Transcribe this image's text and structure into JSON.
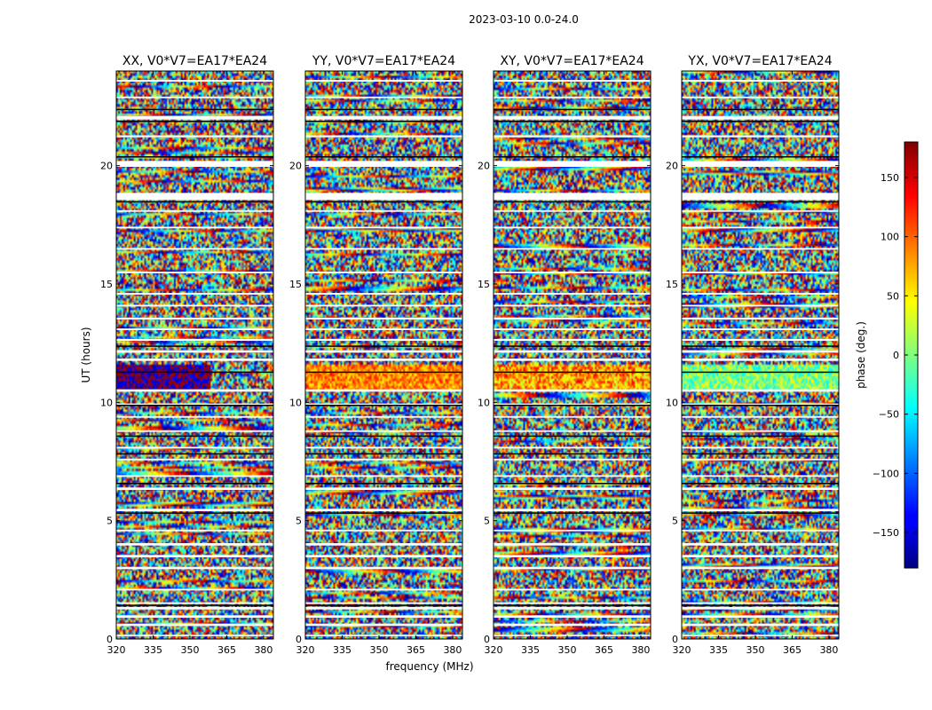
{
  "figure": {
    "suptitle": "2023-03-10 0.0-24.0",
    "xlabel": "frequency (MHz)",
    "ylabel": "UT (hours)"
  },
  "chart_data": {
    "type": "heatmap",
    "x_range": [
      320,
      384
    ],
    "y_range": [
      0,
      24
    ],
    "xticks": [
      320,
      335,
      350,
      365,
      380
    ],
    "yticks": [
      0,
      5,
      10,
      15,
      20
    ],
    "panels": [
      {
        "title": "XX, V0*V7=EA17*EA24"
      },
      {
        "title": "YY, V0*V7=EA17*EA24"
      },
      {
        "title": "XY, V0*V7=EA17*EA24"
      },
      {
        "title": "YX, V0*V7=EA17*EA24"
      }
    ],
    "colorbar": {
      "label": "phase (deg.)",
      "range": [
        -180,
        180
      ],
      "ticks": [
        -150,
        -100,
        -50,
        0,
        50,
        100,
        150
      ],
      "colormap": "jet"
    },
    "blank_bands_hours": [
      [
        0.12,
        0.18
      ],
      [
        0.55,
        0.65
      ],
      [
        0.9,
        1.0
      ],
      [
        1.25,
        1.35
      ],
      [
        1.48,
        1.55
      ],
      [
        2.05,
        2.12
      ],
      [
        2.95,
        3.05
      ],
      [
        3.45,
        3.55
      ],
      [
        3.95,
        4.05
      ],
      [
        4.55,
        4.62
      ],
      [
        5.4,
        5.5
      ],
      [
        6.3,
        6.4
      ],
      [
        6.85,
        6.92
      ],
      [
        7.55,
        7.62
      ],
      [
        8.05,
        8.12
      ],
      [
        8.75,
        8.82
      ],
      [
        9.35,
        9.42
      ],
      [
        9.85,
        9.95
      ],
      [
        10.45,
        10.55
      ],
      [
        11.75,
        11.85
      ],
      [
        12.1,
        12.2
      ],
      [
        12.6,
        12.68
      ],
      [
        13.05,
        13.12
      ],
      [
        13.5,
        13.58
      ],
      [
        14.05,
        14.12
      ],
      [
        14.55,
        14.62
      ],
      [
        15.45,
        15.52
      ],
      [
        16.45,
        16.52
      ],
      [
        17.35,
        17.42
      ],
      [
        18.05,
        18.12
      ],
      [
        18.55,
        18.85
      ],
      [
        19.95,
        20.2
      ],
      [
        21.2,
        21.28
      ],
      [
        21.95,
        22.1
      ],
      [
        22.85,
        22.92
      ],
      [
        23.55,
        23.62
      ]
    ],
    "dark_lines_hours": [
      1.45,
      5.35,
      6.6,
      7.85,
      8.6,
      9.9,
      11.3,
      12.4,
      18.5,
      20.4,
      21.9,
      22.4
    ]
  }
}
